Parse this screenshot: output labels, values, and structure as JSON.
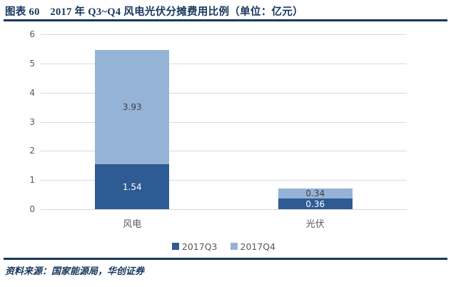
{
  "header": {
    "title": "图表 60　2017 年 Q3~Q4 风电光伏分摊费用比例（单位：亿元）"
  },
  "footer": {
    "source": "资料来源：国家能源局，华创证券"
  },
  "colors": {
    "navy": "#17375E",
    "grid": "#D9D9D9",
    "axis_text": "#595959"
  },
  "chart_data": {
    "type": "bar",
    "stacked": true,
    "title": "2017 年 Q3~Q4 风电光伏分摊费用比例（单位：亿元）",
    "categories": [
      "风电",
      "光伏"
    ],
    "series": [
      {
        "name": "2017Q3",
        "values": [
          1.54,
          0.36
        ],
        "color": "#2F5B94",
        "label_color": "#FFFFFF"
      },
      {
        "name": "2017Q4",
        "values": [
          3.93,
          0.34
        ],
        "color": "#95B3D7",
        "label_color": "#404040"
      }
    ],
    "totals": [
      5.47,
      0.7
    ],
    "xlabel": "",
    "ylabel": "",
    "ylim": [
      0,
      6
    ],
    "ytick_step": 1,
    "yticks": [
      0,
      1,
      2,
      3,
      4,
      5,
      6
    ],
    "grid": true,
    "legend_position": "bottom"
  }
}
